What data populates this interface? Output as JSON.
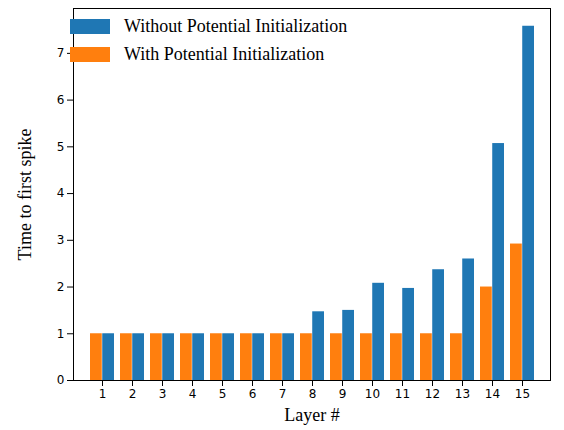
{
  "chart_data": {
    "type": "bar",
    "x_label": "Layer #",
    "y_label": "Time to first spike",
    "categories": [
      1,
      2,
      3,
      4,
      5,
      6,
      7,
      8,
      9,
      10,
      11,
      12,
      13,
      14,
      15
    ],
    "series": [
      {
        "name": "Without Potential Initialization",
        "color": "#1f77b4",
        "values": [
          1,
          1,
          1,
          1,
          1,
          1,
          1,
          1.47,
          1.5,
          2.08,
          1.97,
          2.37,
          2.6,
          5.07,
          7.58
        ]
      },
      {
        "name": "With Potential Initialization",
        "color": "#ff7f0e",
        "values": [
          1,
          1,
          1,
          1,
          1,
          1,
          1,
          1,
          1,
          1,
          1,
          1,
          1,
          2.0,
          2.92
        ]
      }
    ],
    "ylim": [
      0,
      7.96
    ],
    "yticks": [
      0,
      1,
      2,
      3,
      4,
      5,
      6,
      7
    ],
    "legend": "upper left"
  }
}
